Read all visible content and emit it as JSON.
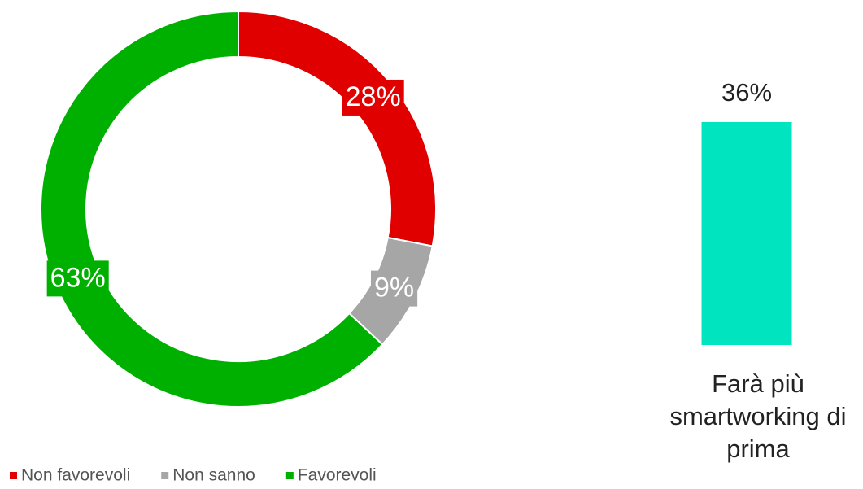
{
  "chart_data": [
    {
      "type": "donut",
      "categories": [
        "Non favorevoli",
        "Non sanno",
        "Favorevoli"
      ],
      "values": [
        28,
        9,
        63
      ],
      "value_labels": [
        "28%",
        "9%",
        "63%"
      ],
      "colors": [
        "#e00000",
        "#a6a6a6",
        "#00b000"
      ],
      "legend": "bottom"
    },
    {
      "type": "bar",
      "categories": [
        "Farà più smartworking di prima"
      ],
      "values": [
        36
      ],
      "value_labels": [
        "36%"
      ],
      "color": "#00e5c0"
    }
  ]
}
